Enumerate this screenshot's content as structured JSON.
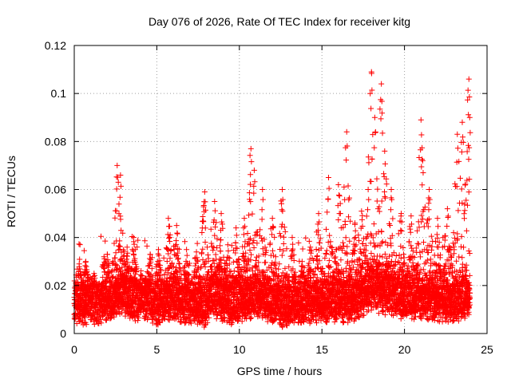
{
  "chart_data": {
    "type": "scatter",
    "title": "Day 076 of 2026, Rate Of TEC Index for receiver kitg",
    "xlabel": "GPS time / hours",
    "ylabel": "ROTI / TECUs",
    "xlim": [
      0,
      25
    ],
    "ylim": [
      0,
      0.12
    ],
    "x_ticks": [
      0,
      5,
      10,
      15,
      20,
      25
    ],
    "x_tick_labels": [
      "0",
      "5",
      "10",
      "15",
      "20",
      "25"
    ],
    "y_ticks": [
      0,
      0.02,
      0.04,
      0.06,
      0.08,
      0.1,
      0.12
    ],
    "y_tick_labels": [
      "0",
      "0.02",
      "0.04",
      "0.06",
      "0.08",
      "0.1",
      "0.12"
    ],
    "grid": true,
    "marker": "plus",
    "color": "#ff0000",
    "series": [
      {
        "name": "ROTI",
        "baseline": [
          [
            0.0,
            0.014
          ],
          [
            1.0,
            0.014
          ],
          [
            2.0,
            0.015
          ],
          [
            2.7,
            0.018
          ],
          [
            3.5,
            0.016
          ],
          [
            5.0,
            0.014
          ],
          [
            6.0,
            0.015
          ],
          [
            7.0,
            0.014
          ],
          [
            7.9,
            0.012
          ],
          [
            8.3,
            0.018
          ],
          [
            9.5,
            0.013
          ],
          [
            10.8,
            0.017
          ],
          [
            12.0,
            0.014
          ],
          [
            13.0,
            0.013
          ],
          [
            14.0,
            0.014
          ],
          [
            15.5,
            0.015
          ],
          [
            17.0,
            0.015
          ],
          [
            18.0,
            0.02
          ],
          [
            19.0,
            0.018
          ],
          [
            20.0,
            0.016
          ],
          [
            21.0,
            0.016
          ],
          [
            22.0,
            0.015
          ],
          [
            23.0,
            0.015
          ],
          [
            23.9,
            0.016
          ]
        ],
        "peaks": [
          [
            0.3,
            0.029
          ],
          [
            0.7,
            0.03
          ],
          [
            1.8,
            0.032
          ],
          [
            2.0,
            0.033
          ],
          [
            2.6,
            0.07
          ],
          [
            2.8,
            0.066
          ],
          [
            3.2,
            0.036
          ],
          [
            3.6,
            0.04
          ],
          [
            4.6,
            0.033
          ],
          [
            5.1,
            0.035
          ],
          [
            5.7,
            0.048
          ],
          [
            6.2,
            0.045
          ],
          [
            6.8,
            0.035
          ],
          [
            7.4,
            0.034
          ],
          [
            7.9,
            0.059
          ],
          [
            8.5,
            0.055
          ],
          [
            8.9,
            0.05
          ],
          [
            9.3,
            0.037
          ],
          [
            9.8,
            0.044
          ],
          [
            10.3,
            0.048
          ],
          [
            10.7,
            0.077
          ],
          [
            10.9,
            0.068
          ],
          [
            11.4,
            0.06
          ],
          [
            12.0,
            0.048
          ],
          [
            12.6,
            0.06
          ],
          [
            13.2,
            0.04
          ],
          [
            13.8,
            0.03
          ],
          [
            14.3,
            0.036
          ],
          [
            14.8,
            0.05
          ],
          [
            15.4,
            0.065
          ],
          [
            16.0,
            0.062
          ],
          [
            16.5,
            0.084
          ],
          [
            17.0,
            0.046
          ],
          [
            17.4,
            0.051
          ],
          [
            17.8,
            0.06
          ],
          [
            18.0,
            0.109
          ],
          [
            18.2,
            0.09
          ],
          [
            18.6,
            0.104
          ],
          [
            18.8,
            0.076
          ],
          [
            19.2,
            0.06
          ],
          [
            19.8,
            0.05
          ],
          [
            20.4,
            0.049
          ],
          [
            21.0,
            0.089
          ],
          [
            21.1,
            0.072
          ],
          [
            21.5,
            0.06
          ],
          [
            22.0,
            0.048
          ],
          [
            22.6,
            0.052
          ],
          [
            23.2,
            0.083
          ],
          [
            23.5,
            0.088
          ],
          [
            23.9,
            0.106
          ],
          [
            23.95,
            0.09
          ]
        ]
      }
    ]
  }
}
